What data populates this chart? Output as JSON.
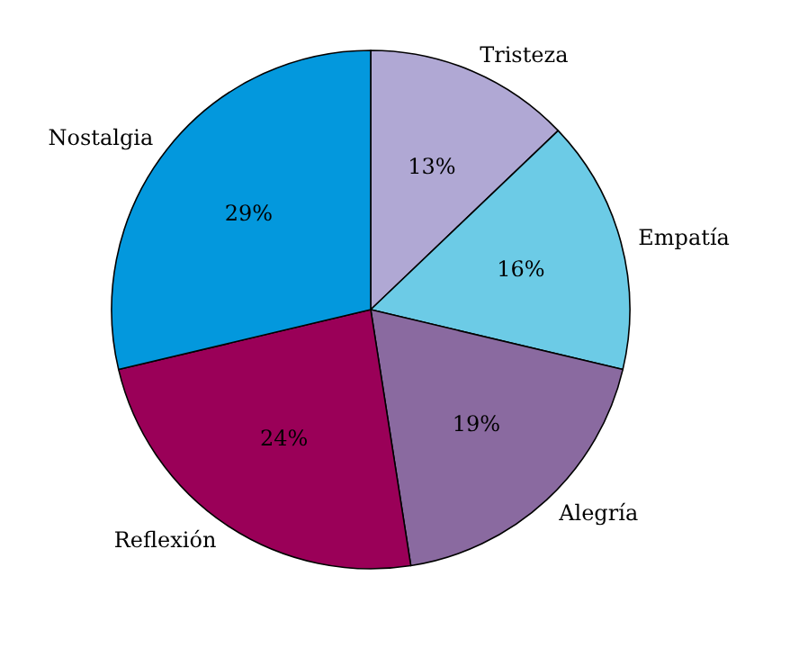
{
  "chart_data": {
    "type": "pie",
    "categories": [
      "Tristeza",
      "Empatía",
      "Alegría",
      "Reflexión",
      "Nostalgia"
    ],
    "values": [
      13,
      16,
      19,
      24,
      29
    ],
    "value_labels": [
      "13%",
      "16%",
      "19%",
      "24%",
      "29%"
    ],
    "colors": [
      "#b0a8d4",
      "#6ccbe6",
      "#8a6aa0",
      "#9a0058",
      "#0398dd"
    ],
    "legend": false
  }
}
